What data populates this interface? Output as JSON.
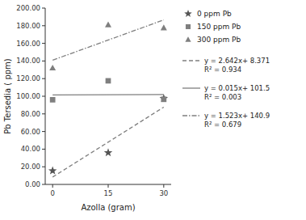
{
  "chart_data": {
    "type": "scatter",
    "x_label": "Azolla (gram)",
    "y_label": "Pb Tersedia ( ppm)",
    "xlim": [
      -2,
      32
    ],
    "ylim": [
      0,
      200
    ],
    "xticks": [
      0,
      15,
      30
    ],
    "yticks": [
      {
        "value": 0.0,
        "label": "0.00"
      },
      {
        "value": 20.0,
        "label": "20.00"
      },
      {
        "value": 40.0,
        "label": "40.00"
      },
      {
        "value": 60.0,
        "label": "60.00"
      },
      {
        "value": 80.0,
        "label": "80.00"
      },
      {
        "value": 100.0,
        "label": "100.00"
      },
      {
        "value": 120.0,
        "label": "120.00"
      },
      {
        "value": 140.0,
        "label": "140.00"
      },
      {
        "value": 160.0,
        "label": "160.00"
      },
      {
        "value": 180.0,
        "label": "180.00"
      },
      {
        "value": 200.0,
        "label": "200.00"
      }
    ],
    "grid": false,
    "legend": "right",
    "series": [
      {
        "name": "0 ppm Pb",
        "type": "scatter",
        "marker": "star",
        "color": "#555555",
        "x": [
          0,
          15,
          30
        ],
        "values": [
          15.5,
          36.0,
          97.5
        ]
      },
      {
        "name": "150 ppm Pb",
        "type": "scatter",
        "marker": "square",
        "color": "#7f7f7f",
        "x": [
          0,
          15,
          30
        ],
        "values": [
          96.0,
          117.5,
          96.5
        ]
      },
      {
        "name": "300 ppm Pb",
        "type": "scatter",
        "marker": "triangle",
        "color": "#7f7f7f",
        "x": [
          0,
          15,
          30
        ],
        "values": [
          132.0,
          181.0,
          177.5
        ]
      },
      {
        "name": "y = 2.642x+ 8.371\nR² = 0.934",
        "type": "line",
        "line_style": "dashed",
        "color": "#7f7f7f",
        "x": [
          0,
          30
        ],
        "values": [
          8.371,
          87.631
        ]
      },
      {
        "name": "y = 0.015x+ 101.5\nR² = 0.003",
        "type": "line",
        "line_style": "solid",
        "color": "#7f7f7f",
        "x": [
          0,
          30
        ],
        "values": [
          101.5,
          101.95
        ]
      },
      {
        "name": "y = 1.523x+ 140.9\nR² = 0.679",
        "type": "line",
        "line_style": "dashdot",
        "color": "#7f7f7f",
        "x": [
          0,
          30
        ],
        "values": [
          140.9,
          186.59
        ]
      }
    ]
  }
}
